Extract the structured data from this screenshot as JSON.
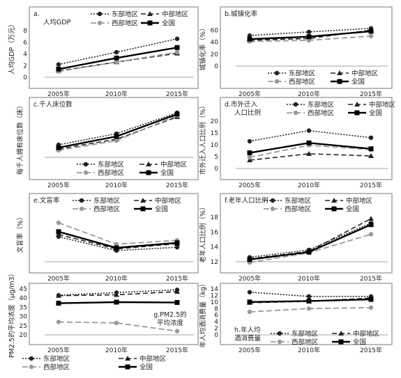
{
  "chart_data": [
    {
      "type": "line",
      "title": "a. 人均GDP",
      "ylabel": "人均GDP（万元）",
      "categories": [
        "2005年",
        "2010年",
        "2015年"
      ],
      "ylim": [
        0,
        8
      ],
      "yticks": [
        0,
        2,
        4,
        6,
        8
      ],
      "legend": "top",
      "legend_title_mode": "left",
      "title_pos": "tl",
      "series": [
        {
          "name": "东部地区",
          "values": [
            2.2,
            4.3,
            6.6
          ]
        },
        {
          "name": "中部地区",
          "values": [
            1.1,
            2.6,
            4.1
          ]
        },
        {
          "name": "西部地区",
          "values": [
            1.0,
            2.6,
            4.3
          ]
        },
        {
          "name": "全国",
          "values": [
            1.4,
            3.3,
            5.1
          ]
        }
      ]
    },
    {
      "type": "line",
      "title": "b.城镇化率",
      "ylabel": "城镇化率（%）",
      "categories": [
        "2005年",
        "2010年",
        "2015年"
      ],
      "ylim": [
        0,
        80
      ],
      "yticks": [
        0,
        20,
        40,
        60
      ],
      "legend": "bottom",
      "title_pos": "tl",
      "series": [
        {
          "name": "东部地区",
          "values": [
            51,
            57,
            63
          ]
        },
        {
          "name": "中部地区",
          "values": [
            43,
            46,
            60
          ]
        },
        {
          "name": "西部地区",
          "values": [
            41,
            43,
            50
          ]
        },
        {
          "name": "全国",
          "values": [
            45,
            49,
            58
          ]
        }
      ]
    },
    {
      "type": "line",
      "title": "c.千人床位数",
      "ylabel": "每千人拥有床位数（床）",
      "categories": [
        "2005年",
        "2010年",
        "2015年"
      ],
      "ylim": [
        2,
        5.5
      ],
      "yticks": [],
      "legend": "bottom",
      "title_pos": "tl",
      "series": [
        {
          "name": "东部地区",
          "values": [
            2.9,
            3.7,
            5.2
          ]
        },
        {
          "name": "中部地区",
          "values": [
            2.6,
            3.3,
            4.9
          ]
        },
        {
          "name": "西部地区",
          "values": [
            2.5,
            3.2,
            5.0
          ]
        },
        {
          "name": "全国",
          "values": [
            2.7,
            3.5,
            5.1
          ]
        }
      ]
    },
    {
      "type": "line",
      "title": "d.市外迁入 人口比例",
      "ylabel": "市外迁入人口比例（%）",
      "categories": [
        "2005年",
        "2010年",
        "2015年"
      ],
      "ylim": [
        0,
        20
      ],
      "yticks": [
        0,
        5,
        10,
        15,
        20
      ],
      "legend": "top",
      "title_pos": "tl",
      "series": [
        {
          "name": "东部地区",
          "values": [
            11.5,
            16.0,
            13.0
          ]
        },
        {
          "name": "中部地区",
          "values": [
            3.5,
            6.2,
            5.3
          ]
        },
        {
          "name": "西部地区",
          "values": [
            4.7,
            9.8,
            8.0
          ]
        },
        {
          "name": "全国",
          "values": [
            6.6,
            10.8,
            8.3
          ]
        }
      ]
    },
    {
      "type": "line",
      "title": "e.文盲率",
      "ylabel": "文盲率（%）",
      "categories": [
        "2005年",
        "2010年",
        "2015年"
      ],
      "ylim": [
        0,
        16
      ],
      "yticks": [],
      "legend": "top",
      "title_pos": "tl",
      "series": [
        {
          "name": "东部地区",
          "values": [
            9.0,
            4.0,
            5.2
          ]
        },
        {
          "name": "中部地区",
          "values": [
            9.8,
            4.6,
            6.5
          ]
        },
        {
          "name": "西部地区",
          "values": [
            14.0,
            6.3,
            7.7
          ]
        },
        {
          "name": "全国",
          "values": [
            10.8,
            5.0,
            6.8
          ]
        }
      ]
    },
    {
      "type": "line",
      "title": "f.老年人口比例",
      "ylabel": "老年人口比例（%）",
      "categories": [
        "2005年",
        "2010年",
        "2015年"
      ],
      "ylim": [
        12,
        18
      ],
      "yticks": [
        12,
        14,
        16,
        18
      ],
      "legend": "top",
      "title_pos": "tl",
      "series": [
        {
          "name": "东部地区",
          "values": [
            12.6,
            13.6,
            17.2
          ]
        },
        {
          "name": "中部地区",
          "values": [
            12.4,
            13.4,
            17.8
          ]
        },
        {
          "name": "西部地区",
          "values": [
            11.9,
            13.2,
            15.7
          ]
        },
        {
          "name": "全国",
          "values": [
            12.3,
            13.3,
            17.0
          ]
        }
      ]
    },
    {
      "type": "line",
      "title": "g.PM2.5的 平均浓度",
      "ylabel": "PM2.5的平均浓度（μg/m3）",
      "categories": [
        "2005年",
        "2010年",
        "2015年"
      ],
      "ylim": [
        20,
        45
      ],
      "yticks": [
        20,
        25,
        30,
        35,
        40,
        45
      ],
      "legend": "bottom",
      "title_pos": "br",
      "series": [
        {
          "name": "东部地区",
          "values": [
            41.5,
            43.0,
            44.5
          ]
        },
        {
          "name": "中部地区",
          "values": [
            41.3,
            41.8,
            43.5
          ]
        },
        {
          "name": "西部地区",
          "values": [
            27.0,
            26.5,
            22.0
          ]
        },
        {
          "name": "全国",
          "values": [
            37.2,
            37.8,
            37.6
          ]
        }
      ]
    },
    {
      "type": "line",
      "title": "h.年人均 酒消费量",
      "ylabel": "年人均酒消费量（kg）",
      "categories": [
        "2005年",
        "2010年",
        "2015年"
      ],
      "ylim": [
        0,
        14
      ],
      "yticks": [
        0,
        2,
        4,
        6,
        8,
        10,
        12,
        14
      ],
      "legend": "bottom",
      "title_pos": "bl",
      "series": [
        {
          "name": "东部地区",
          "values": [
            13.0,
            11.7,
            11.7
          ]
        },
        {
          "name": "中部地区",
          "values": [
            9.8,
            10.2,
            11.2
          ]
        },
        {
          "name": "西部地区",
          "values": [
            7.0,
            8.0,
            8.3
          ]
        },
        {
          "name": "全国",
          "values": [
            10.0,
            10.3,
            10.8
          ]
        }
      ]
    }
  ]
}
